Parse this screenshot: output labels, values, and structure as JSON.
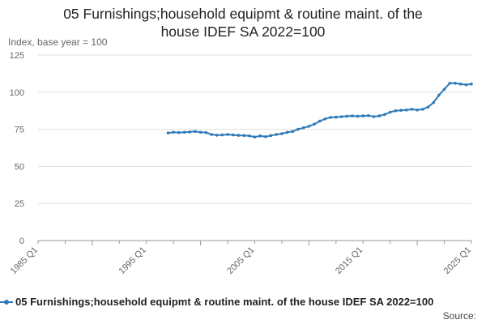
{
  "title_lines": [
    "05 Furnishings;household equipmt & routine maint. of the",
    "house IDEF SA 2022=100"
  ],
  "source_label": "Source:",
  "colors": {
    "series": "#2e7ab8",
    "grid": "#e0e0e0",
    "axis": "#999999",
    "tick_text": "#666666"
  },
  "chart_data": {
    "type": "line",
    "title": "05 Furnishings;household equipmt & routine maint. of the house IDEF SA 2022=100",
    "ylabel": "Index, base year = 100",
    "xlabel": "",
    "ylim": [
      0,
      125
    ],
    "yticks": [
      0,
      25,
      50,
      75,
      100,
      125
    ],
    "xlim": [
      1985,
      2025
    ],
    "xticks": [
      {
        "value": 1985,
        "label": "1985 Q1"
      },
      {
        "value": 1995,
        "label": "1995 Q1"
      },
      {
        "value": 2005,
        "label": "2005 Q1"
      },
      {
        "value": 2015,
        "label": "2015 Q1"
      },
      {
        "value": 2025,
        "label": "2025 Q1"
      }
    ],
    "grid": true,
    "legend_position": "bottom",
    "series": [
      {
        "name": "05 Furnishings;household equipmt & routine maint. of the house IDEF SA 2022=100",
        "points": [
          [
            1997.0,
            72.5
          ],
          [
            1997.5,
            73.0
          ],
          [
            1998.0,
            72.8
          ],
          [
            1998.5,
            73.0
          ],
          [
            1999.0,
            73.2
          ],
          [
            1999.5,
            73.5
          ],
          [
            2000.0,
            73.0
          ],
          [
            2000.5,
            72.8
          ],
          [
            2001.0,
            71.5
          ],
          [
            2001.5,
            71.0
          ],
          [
            2002.0,
            71.2
          ],
          [
            2002.5,
            71.5
          ],
          [
            2003.0,
            71.2
          ],
          [
            2003.5,
            70.9
          ],
          [
            2004.0,
            70.8
          ],
          [
            2004.5,
            70.6
          ],
          [
            2005.0,
            69.8
          ],
          [
            2005.5,
            70.5
          ],
          [
            2006.0,
            70.0
          ],
          [
            2006.5,
            70.8
          ],
          [
            2007.0,
            71.5
          ],
          [
            2007.5,
            72.0
          ],
          [
            2008.0,
            73.0
          ],
          [
            2008.5,
            73.5
          ],
          [
            2009.0,
            75.0
          ],
          [
            2009.5,
            76.0
          ],
          [
            2010.0,
            77.0
          ],
          [
            2010.5,
            78.5
          ],
          [
            2011.0,
            80.5
          ],
          [
            2011.5,
            82.0
          ],
          [
            2012.0,
            83.0
          ],
          [
            2012.5,
            83.2
          ],
          [
            2013.0,
            83.5
          ],
          [
            2013.5,
            83.8
          ],
          [
            2014.0,
            84.0
          ],
          [
            2014.5,
            83.8
          ],
          [
            2015.0,
            84.0
          ],
          [
            2015.5,
            84.2
          ],
          [
            2016.0,
            83.5
          ],
          [
            2016.5,
            84.0
          ],
          [
            2017.0,
            85.0
          ],
          [
            2017.5,
            86.5
          ],
          [
            2018.0,
            87.5
          ],
          [
            2018.5,
            87.8
          ],
          [
            2019.0,
            88.0
          ],
          [
            2019.5,
            88.5
          ],
          [
            2020.0,
            88.0
          ],
          [
            2020.5,
            88.5
          ],
          [
            2021.0,
            90.0
          ],
          [
            2021.5,
            93.0
          ],
          [
            2022.0,
            98.0
          ],
          [
            2022.5,
            102.0
          ],
          [
            2023.0,
            106.0
          ],
          [
            2023.5,
            106.0
          ],
          [
            2024.0,
            105.5
          ],
          [
            2024.5,
            105.0
          ],
          [
            2025.0,
            105.5
          ]
        ]
      }
    ]
  }
}
